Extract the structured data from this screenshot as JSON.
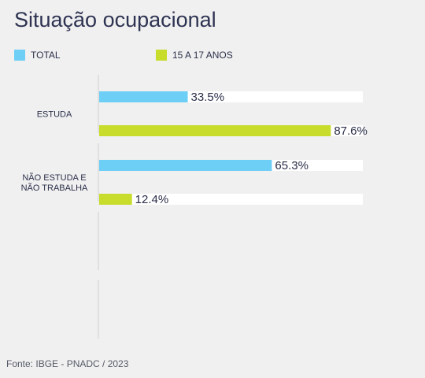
{
  "title": "Situação ocupacional",
  "legend": [
    {
      "label": "TOTAL",
      "color": "#6ecff6"
    },
    {
      "label": "15 A 17 ANOS",
      "color": "#c7dc2b"
    }
  ],
  "footer": "Fonte: IBGE - PNADC / 2023",
  "colors": {
    "track": "#ffffff",
    "axis": "#cfcfcf",
    "value_text": "#2b2f4a",
    "category_text": "#2b2f4a"
  },
  "chart_data": {
    "type": "bar",
    "orientation": "horizontal",
    "title": "Situação ocupacional",
    "categories": [
      "ESTUDA",
      [
        "NÃO ESTUDA E",
        "NÃO TRABALHA"
      ],
      "",
      ""
    ],
    "series": [
      {
        "name": "TOTAL",
        "values": [
          33.5,
          65.3,
          null,
          null
        ]
      },
      {
        "name": "15 A 17 ANOS",
        "values": [
          87.6,
          12.4,
          null,
          null
        ]
      }
    ],
    "value_format": "%",
    "xlim": [
      0,
      100
    ],
    "grid": false,
    "legend": "top-left"
  }
}
